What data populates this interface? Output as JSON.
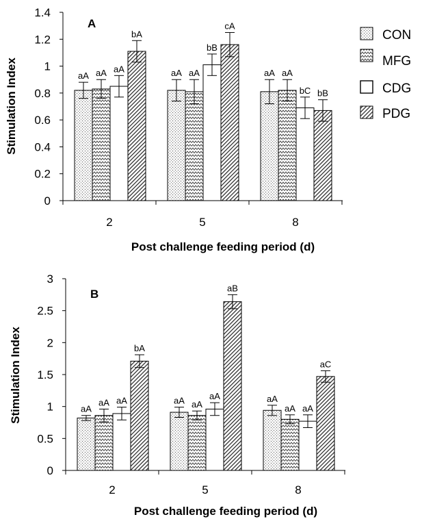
{
  "chart_data": [
    {
      "type": "bar",
      "panel_label": "A",
      "categories": [
        "2",
        "5",
        "8"
      ],
      "xlabel": "Post challenge feeding period (d)",
      "ylabel": "Stimulation Index",
      "ylim": [
        0,
        1.4
      ],
      "yticks": [
        "0",
        "0.2",
        "0.4",
        "0.6",
        "0.8",
        "1",
        "1.2",
        "1.4"
      ],
      "yticks_values": [
        0,
        0.2,
        0.4,
        0.6,
        0.8,
        1.0,
        1.2,
        1.4
      ],
      "grid": false,
      "legend_position": "right",
      "series": [
        {
          "name": "CON",
          "values": [
            0.82,
            0.82,
            0.81
          ],
          "errors": [
            0.06,
            0.08,
            0.09
          ],
          "labels": [
            "aA",
            "aA",
            "aA"
          ]
        },
        {
          "name": "MFG",
          "values": [
            0.83,
            0.81,
            0.82
          ],
          "errors": [
            0.07,
            0.09,
            0.08
          ],
          "labels": [
            "aA",
            "aA",
            "aA"
          ]
        },
        {
          "name": "CDG",
          "values": [
            0.85,
            1.01,
            0.69
          ],
          "errors": [
            0.08,
            0.08,
            0.08
          ],
          "labels": [
            "aA",
            "bB",
            "bC"
          ]
        },
        {
          "name": "PDG",
          "values": [
            1.11,
            1.16,
            0.67
          ],
          "errors": [
            0.08,
            0.09,
            0.08
          ],
          "labels": [
            "bA",
            "cA",
            "bB"
          ]
        }
      ]
    },
    {
      "type": "bar",
      "panel_label": "B",
      "categories": [
        "2",
        "5",
        "8"
      ],
      "xlabel": "Post challenge feeding period (d)",
      "ylabel": "Stimulation Index",
      "ylim": [
        0,
        3
      ],
      "yticks": [
        "0",
        "0.5",
        "1",
        "1.5",
        "2",
        "2.5",
        "3"
      ],
      "yticks_values": [
        0,
        0.5,
        1.0,
        1.5,
        2.0,
        2.5,
        3.0
      ],
      "grid": false,
      "series": [
        {
          "name": "CON",
          "values": [
            0.82,
            0.91,
            0.94
          ],
          "errors": [
            0.04,
            0.08,
            0.08
          ],
          "labels": [
            "aA",
            "aA",
            "aA"
          ]
        },
        {
          "name": "MFG",
          "values": [
            0.86,
            0.86,
            0.8
          ],
          "errors": [
            0.1,
            0.07,
            0.07
          ],
          "labels": [
            "aA",
            "aA",
            "aA"
          ]
        },
        {
          "name": "CDG",
          "values": [
            0.89,
            0.96,
            0.77
          ],
          "errors": [
            0.1,
            0.1,
            0.1
          ],
          "labels": [
            "aA",
            "aA",
            "aA"
          ]
        },
        {
          "name": "PDG",
          "values": [
            1.71,
            2.64,
            1.47
          ],
          "errors": [
            0.1,
            0.11,
            0.09
          ],
          "labels": [
            "bA",
            "aB",
            "aC"
          ]
        }
      ]
    }
  ],
  "legend": {
    "items": [
      {
        "name": "CON",
        "pattern": "dots"
      },
      {
        "name": "MFG",
        "pattern": "zigzag"
      },
      {
        "name": "CDG",
        "pattern": "none"
      },
      {
        "name": "PDG",
        "pattern": "hatch"
      }
    ]
  }
}
